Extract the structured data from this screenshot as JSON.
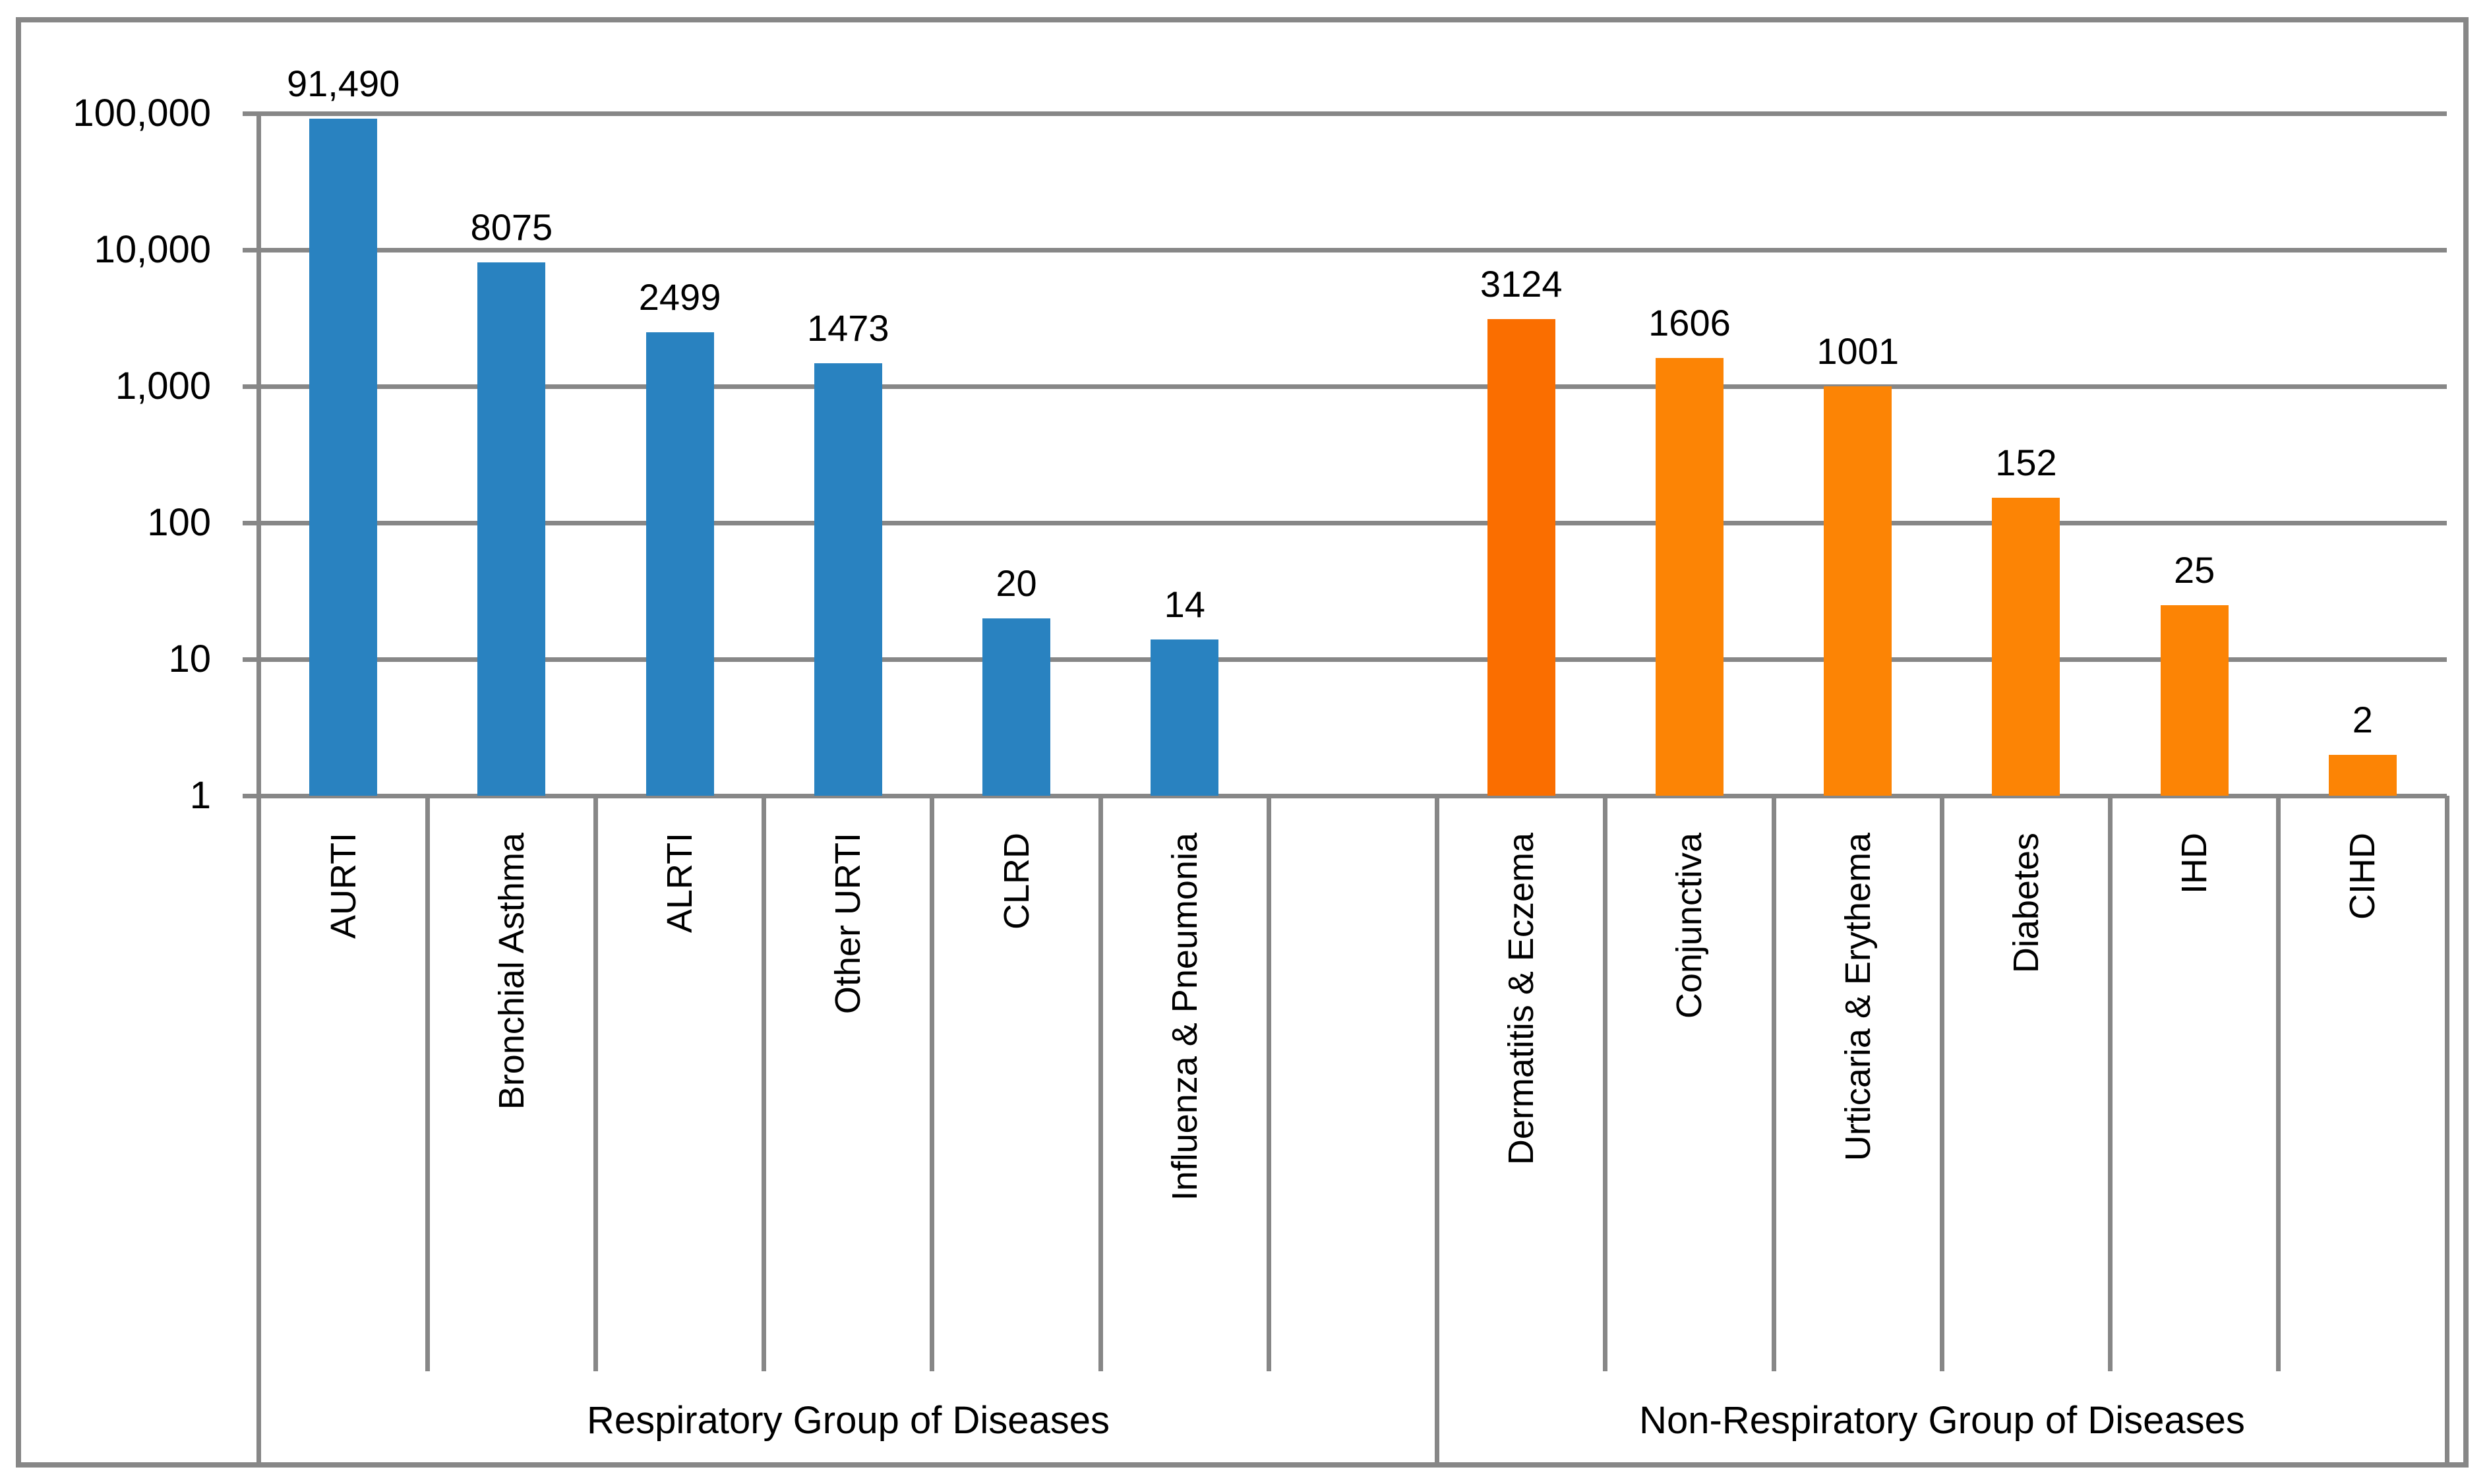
{
  "chart_data": {
    "type": "bar",
    "title": "",
    "y_axis": {
      "scale": "log10",
      "min": 1,
      "max": 100000,
      "tick_labels": [
        "100,000",
        "10,000",
        "1,000",
        "100",
        "10",
        "1"
      ]
    },
    "grid": true,
    "legend": false,
    "gap_cells_between_groups": 1,
    "groups": [
      {
        "label": "Respiratory Group of Diseases",
        "categories": [
          "AURTI",
          "Bronchial Asthma",
          "ALRTI",
          "Other URTI",
          "CLRD",
          "Influenza & Pneumonia"
        ],
        "values": [
          91490,
          8075,
          2499,
          1473,
          20,
          14
        ],
        "value_labels": [
          "91,490",
          "8075",
          "2499",
          "1473",
          "20",
          "14"
        ],
        "bar_colors": [
          "#2982C0",
          "#2982C0",
          "#2982C0",
          "#2982C0",
          "#2982C0",
          "#2982C0"
        ]
      },
      {
        "label": "Non-Respiratory Group of Diseases",
        "categories": [
          "Dermatitis & Eczema",
          "Conjunctiva",
          "Urticaria & Erythema",
          "Diabetes",
          "IHD",
          "CIHD"
        ],
        "values": [
          3124,
          1606,
          1001,
          152,
          25,
          2
        ],
        "value_labels": [
          "3124",
          "1606",
          "1001",
          "152",
          "25",
          "2"
        ],
        "bar_colors": [
          "#FA6E00",
          "#FC8405",
          "#FC8405",
          "#FC8405",
          "#FC8405",
          "#FC8405"
        ]
      }
    ],
    "colors": {
      "gridline": "#878787",
      "respiratory_bar": "#2982C0",
      "non_respiratory_bar": "#FC8405",
      "non_respiratory_first_bar": "#FA6E00",
      "text": "#000000",
      "background": "#FFFFFF"
    }
  }
}
